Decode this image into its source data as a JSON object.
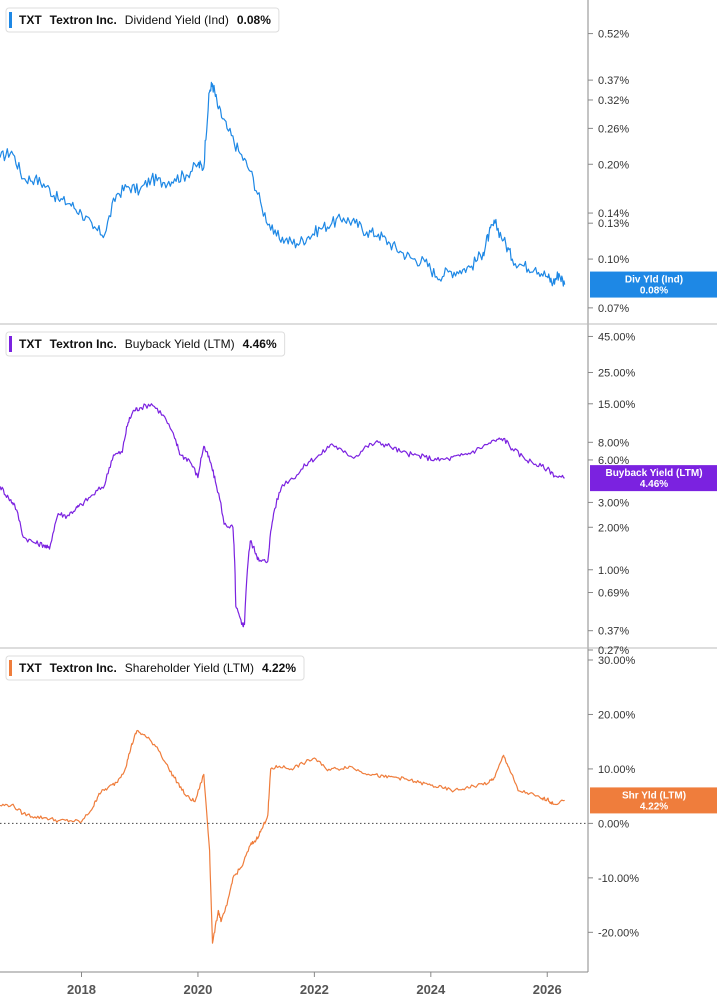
{
  "chart_data": [
    {
      "type": "line",
      "ticker": "TXT",
      "company": "Textron Inc.",
      "series_name": "Dividend Yield (Ind)",
      "current_value": "0.08%",
      "badge_label": "Div Yld (Ind)",
      "badge_value": "0.08%",
      "color": "#1e88e5",
      "yscale": "log",
      "ylim": [
        0.065,
        0.6
      ],
      "yticks": [
        0.52,
        0.37,
        0.32,
        0.26,
        0.2,
        0.14,
        0.13,
        0.1,
        0.07
      ],
      "ytick_labels": [
        "0.52%",
        "0.37%",
        "0.32%",
        "0.26%",
        "0.20%",
        "0.14%",
        "0.13%",
        "0.10%",
        "0.07%"
      ],
      "grid": false,
      "x": [
        2016.6,
        2016.8,
        2017.0,
        2017.2,
        2017.4,
        2017.6,
        2017.8,
        2018.0,
        2018.2,
        2018.4,
        2018.6,
        2018.8,
        2019.0,
        2019.2,
        2019.4,
        2019.6,
        2019.8,
        2020.0,
        2020.1,
        2020.2,
        2020.25,
        2020.35,
        2020.5,
        2020.7,
        2020.9,
        2021.1,
        2021.3,
        2021.5,
        2021.7,
        2021.9,
        2022.1,
        2022.3,
        2022.5,
        2022.7,
        2022.9,
        2023.1,
        2023.3,
        2023.5,
        2023.7,
        2023.9,
        2024.1,
        2024.3,
        2024.5,
        2024.7,
        2024.9,
        2025.0,
        2025.1,
        2025.25,
        2025.4,
        2025.6,
        2025.8,
        2026.0,
        2026.1,
        2026.2,
        2026.3
      ],
      "values": [
        0.21,
        0.22,
        0.18,
        0.18,
        0.17,
        0.155,
        0.15,
        0.14,
        0.125,
        0.12,
        0.16,
        0.17,
        0.165,
        0.18,
        0.175,
        0.18,
        0.185,
        0.2,
        0.195,
        0.34,
        0.36,
        0.3,
        0.26,
        0.22,
        0.19,
        0.145,
        0.12,
        0.115,
        0.112,
        0.118,
        0.125,
        0.13,
        0.135,
        0.13,
        0.122,
        0.12,
        0.112,
        0.105,
        0.1,
        0.098,
        0.088,
        0.091,
        0.092,
        0.095,
        0.105,
        0.12,
        0.13,
        0.115,
        0.1,
        0.095,
        0.094,
        0.088,
        0.084,
        0.09,
        0.083
      ]
    },
    {
      "type": "line",
      "ticker": "TXT",
      "company": "Textron Inc.",
      "series_name": "Buyback Yield (LTM)",
      "current_value": "4.46%",
      "badge_label": "Buyback Yield (LTM)",
      "badge_value": "4.46%",
      "color": "#7b22e0",
      "yscale": "log",
      "ylim": [
        0.27,
        50
      ],
      "yticks": [
        45,
        25,
        15,
        8,
        6,
        3,
        2,
        1,
        0.69,
        0.37,
        0.27
      ],
      "ytick_labels": [
        "45.00%",
        "25.00%",
        "15.00%",
        "8.00%",
        "6.00%",
        "3.00%",
        "2.00%",
        "1.00%",
        "0.69%",
        "0.37%",
        "0.27%"
      ],
      "grid": false,
      "x": [
        2016.6,
        2016.75,
        2016.85,
        2017.0,
        2017.2,
        2017.35,
        2017.45,
        2017.6,
        2017.75,
        2017.9,
        2018.0,
        2018.2,
        2018.4,
        2018.55,
        2018.7,
        2018.8,
        2018.9,
        2019.0,
        2019.2,
        2019.4,
        2019.6,
        2019.7,
        2019.85,
        2020.0,
        2020.1,
        2020.2,
        2020.3,
        2020.45,
        2020.6,
        2020.65,
        2020.75,
        2020.8,
        2020.9,
        2021.0,
        2021.05,
        2021.2,
        2021.3,
        2021.45,
        2021.7,
        2021.9,
        2022.1,
        2022.3,
        2022.5,
        2022.7,
        2022.9,
        2023.1,
        2023.3,
        2023.5,
        2023.7,
        2023.9,
        2024.1,
        2024.3,
        2024.5,
        2024.7,
        2024.9,
        2025.1,
        2025.25,
        2025.4,
        2025.6,
        2025.8,
        2026.0,
        2026.15,
        2026.3
      ],
      "values": [
        3.9,
        3.2,
        2.9,
        1.7,
        1.55,
        1.5,
        1.4,
        2.5,
        2.4,
        2.7,
        2.9,
        3.4,
        4.0,
        6.5,
        6.8,
        11.0,
        13.5,
        14.0,
        15.0,
        12.5,
        8.5,
        6.5,
        6.0,
        4.5,
        7.5,
        6.0,
        4.2,
        2.1,
        2.0,
        0.55,
        0.41,
        0.41,
        1.6,
        1.3,
        1.15,
        1.15,
        2.5,
        4.0,
        4.7,
        5.8,
        6.5,
        7.8,
        6.8,
        6.3,
        7.5,
        8.0,
        7.5,
        6.8,
        6.5,
        6.3,
        6.0,
        6.1,
        6.4,
        6.8,
        7.5,
        8.2,
        8.5,
        7.2,
        6.2,
        5.6,
        5.2,
        4.6,
        4.46
      ]
    },
    {
      "type": "line",
      "ticker": "TXT",
      "company": "Textron Inc.",
      "series_name": "Shareholder Yield (LTM)",
      "current_value": "4.22%",
      "badge_label": "Shr Yld (LTM)",
      "badge_value": "4.22%",
      "color": "#ef7d3c",
      "yscale": "linear",
      "ylim": [
        -26,
        30
      ],
      "yticks": [
        30,
        20,
        10,
        0,
        -10,
        -20
      ],
      "ytick_labels": [
        "30.00%",
        "20.00%",
        "10.00%",
        "0.00%",
        "-10.00%",
        "-20.00%"
      ],
      "zero_line": true,
      "grid": false,
      "x": [
        2016.6,
        2016.8,
        2017.0,
        2017.2,
        2017.4,
        2017.6,
        2017.8,
        2018.0,
        2018.2,
        2018.3,
        2018.45,
        2018.6,
        2018.75,
        2018.85,
        2018.95,
        2019.1,
        2019.3,
        2019.5,
        2019.65,
        2019.8,
        2019.95,
        2020.1,
        2020.2,
        2020.25,
        2020.35,
        2020.4,
        2020.5,
        2020.6,
        2020.75,
        2020.9,
        2021.0,
        2021.1,
        2021.2,
        2021.25,
        2021.4,
        2021.6,
        2021.8,
        2022.0,
        2022.2,
        2022.4,
        2022.6,
        2022.8,
        2023.0,
        2023.2,
        2023.4,
        2023.6,
        2023.8,
        2024.0,
        2024.2,
        2024.4,
        2024.6,
        2024.8,
        2025.0,
        2025.1,
        2025.25,
        2025.35,
        2025.5,
        2025.7,
        2025.9,
        2026.0,
        2026.1,
        2026.3
      ],
      "values": [
        3.3,
        3.4,
        1.8,
        1.2,
        1.0,
        0.5,
        0.5,
        0.3,
        3.0,
        5.5,
        6.5,
        7.5,
        10.0,
        14.0,
        17.0,
        16.0,
        14.0,
        10.0,
        7.5,
        5.0,
        4.0,
        9.0,
        -5.0,
        -22.0,
        -16.0,
        -18.0,
        -15.0,
        -10.0,
        -8.0,
        -4.0,
        -3.0,
        -1.0,
        1.5,
        10.0,
        10.5,
        10.0,
        11.0,
        12.0,
        10.0,
        10.0,
        10.5,
        9.5,
        9.0,
        8.5,
        8.5,
        8.0,
        7.5,
        7.0,
        6.5,
        6.0,
        6.5,
        7.0,
        7.5,
        8.5,
        12.5,
        10.0,
        6.0,
        5.5,
        4.5,
        4.5,
        3.5,
        4.22
      ]
    }
  ],
  "x_axis": {
    "xlim": [
      2016.6,
      2026.7
    ],
    "ticks": [
      2018,
      2020,
      2022,
      2024,
      2026
    ],
    "tick_labels": [
      "2018",
      "2020",
      "2022",
      "2024",
      "2026"
    ]
  }
}
